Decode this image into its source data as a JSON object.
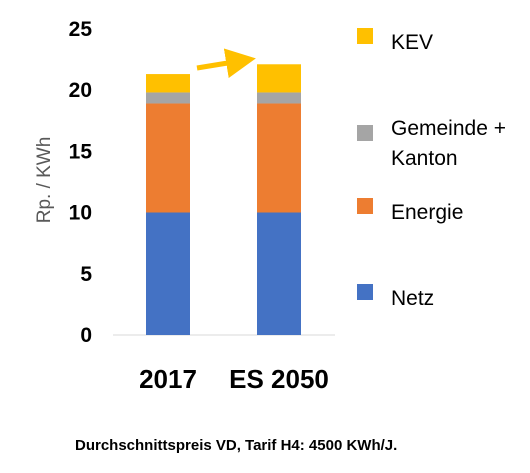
{
  "chart_data": {
    "type": "bar",
    "stacked": true,
    "categories": [
      "2017",
      "ES 2050"
    ],
    "series": [
      {
        "name": "Netz",
        "values": [
          10.0,
          10.0
        ],
        "color": "#4472c4"
      },
      {
        "name": "Energie",
        "values": [
          8.9,
          8.9
        ],
        "color": "#ed7d31"
      },
      {
        "name": "Gemeinde + Kanton",
        "values": [
          0.9,
          0.9
        ],
        "color": "#a5a5a5"
      },
      {
        "name": "KEV",
        "values": [
          1.5,
          2.3
        ],
        "color": "#ffc000"
      }
    ],
    "legend_order": [
      "KEV",
      "Gemeinde + Kanton",
      "Energie",
      "Netz"
    ],
    "legend_lines": [
      [
        "KEV"
      ],
      [
        "Gemeinde +",
        "Kanton"
      ],
      [
        "Energie"
      ],
      [
        "Netz"
      ]
    ],
    "ylabel": "Rp. / KWh",
    "ylim": [
      0,
      25
    ],
    "yticks": [
      "0",
      "5",
      "10",
      "15",
      "20",
      "25"
    ],
    "grid": false,
    "legend_position": "right",
    "annotation": "arrow from 2017 to ES 2050 (increase)",
    "footer": "Durchschnittspreis VD, Tarif H4: 4500 KWh/J."
  }
}
